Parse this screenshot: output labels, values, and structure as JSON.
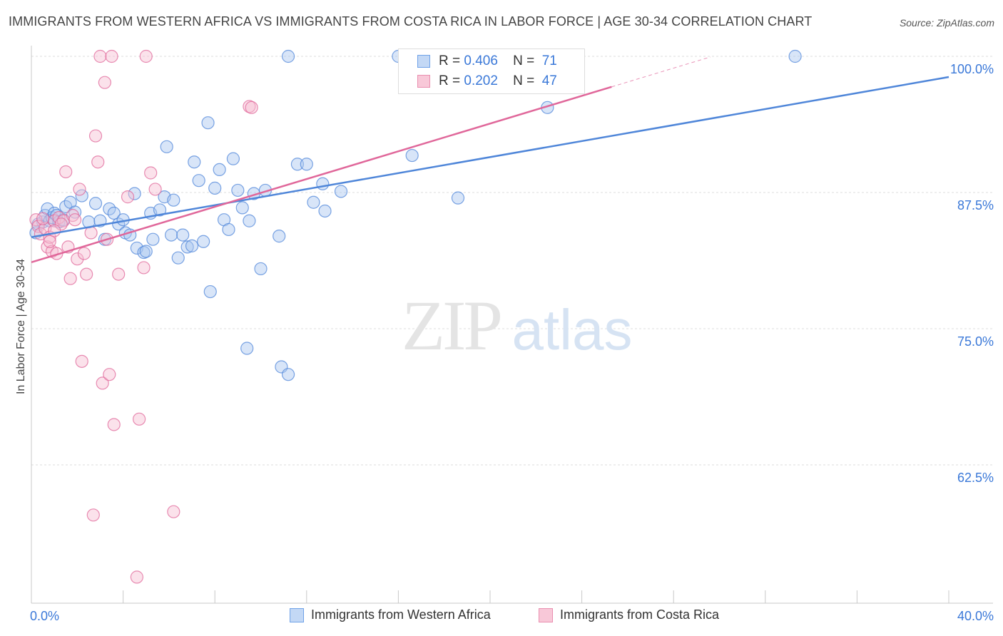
{
  "title": "IMMIGRANTS FROM WESTERN AFRICA VS IMMIGRANTS FROM COSTA RICA IN LABOR FORCE | AGE 30-34 CORRELATION CHART",
  "source": "Source: ZipAtlas.com",
  "watermark": {
    "zip": "ZIP",
    "atlas": "atlas"
  },
  "legend": {
    "rows": [
      {
        "r_label": "R =",
        "r_value": "0.406",
        "n_label": "N =",
        "n_value": "71",
        "color": "#6fa2e8",
        "fill": "#c3d8f5"
      },
      {
        "r_label": "R =",
        "r_value": "0.202",
        "n_label": "N =",
        "n_value": "47",
        "color": "#ea8fb0",
        "fill": "#f8c8d8"
      }
    ]
  },
  "bottom_legend": {
    "series_a": "Immigrants from Western Africa",
    "series_b": "Immigrants from Costa Rica"
  },
  "chart_data": {
    "type": "scatter",
    "title": "IMMIGRANTS FROM WESTERN AFRICA VS IMMIGRANTS FROM COSTA RICA IN LABOR FORCE | AGE 30-34 CORRELATION CHART",
    "xlabel": "",
    "ylabel": "In Labor Force | Age 30-34",
    "xlim": [
      0,
      40
    ],
    "ylim": [
      50,
      101
    ],
    "x_tick_labels": [
      {
        "value": 0,
        "label": "0.0%"
      },
      {
        "value": 40,
        "label": "40.0%"
      }
    ],
    "y_tick_labels": [
      {
        "value": 100,
        "label": "100.0%"
      },
      {
        "value": 87.5,
        "label": "87.5%"
      },
      {
        "value": 75,
        "label": "75.0%"
      },
      {
        "value": 62.5,
        "label": "62.5%"
      }
    ],
    "grid": true,
    "series": [
      {
        "name": "Immigrants from Western Africa",
        "color": "#4f86d9",
        "fill": "#a9c6f0",
        "trend": {
          "x": [
            0,
            40
          ],
          "y": [
            83.4,
            98.1
          ],
          "dashed_x": null
        },
        "points": [
          [
            0.2,
            83.8
          ],
          [
            0.3,
            84.6
          ],
          [
            0.5,
            84.8
          ],
          [
            0.6,
            85.4
          ],
          [
            0.7,
            86.0
          ],
          [
            0.8,
            84.9
          ],
          [
            0.9,
            85.2
          ],
          [
            1.0,
            85.6
          ],
          [
            1.1,
            85.4
          ],
          [
            1.2,
            84.8
          ],
          [
            1.4,
            85.0
          ],
          [
            1.5,
            86.2
          ],
          [
            1.7,
            86.6
          ],
          [
            1.9,
            85.7
          ],
          [
            2.2,
            87.2
          ],
          [
            2.5,
            84.8
          ],
          [
            2.8,
            86.5
          ],
          [
            3.0,
            84.9
          ],
          [
            3.2,
            83.2
          ],
          [
            3.4,
            86.0
          ],
          [
            3.6,
            85.6
          ],
          [
            3.8,
            84.6
          ],
          [
            4.0,
            85.0
          ],
          [
            4.1,
            83.8
          ],
          [
            4.3,
            83.6
          ],
          [
            4.5,
            87.4
          ],
          [
            4.6,
            82.4
          ],
          [
            4.9,
            82.0
          ],
          [
            5.0,
            82.1
          ],
          [
            5.2,
            85.6
          ],
          [
            5.3,
            83.2
          ],
          [
            5.6,
            85.9
          ],
          [
            5.8,
            87.1
          ],
          [
            5.9,
            91.7
          ],
          [
            6.1,
            83.6
          ],
          [
            6.2,
            86.8
          ],
          [
            6.4,
            81.5
          ],
          [
            6.6,
            83.6
          ],
          [
            6.8,
            82.5
          ],
          [
            7.0,
            82.6
          ],
          [
            7.1,
            90.3
          ],
          [
            7.3,
            88.6
          ],
          [
            7.5,
            83.0
          ],
          [
            7.7,
            93.9
          ],
          [
            7.8,
            78.4
          ],
          [
            8.0,
            87.9
          ],
          [
            8.2,
            89.6
          ],
          [
            8.4,
            85.0
          ],
          [
            8.6,
            84.1
          ],
          [
            8.8,
            90.6
          ],
          [
            9.0,
            87.7
          ],
          [
            9.2,
            86.1
          ],
          [
            9.4,
            73.2
          ],
          [
            9.5,
            84.9
          ],
          [
            9.7,
            87.4
          ],
          [
            10.0,
            80.5
          ],
          [
            10.2,
            87.7
          ],
          [
            10.8,
            83.5
          ],
          [
            10.9,
            71.5
          ],
          [
            11.2,
            70.8
          ],
          [
            11.2,
            100.0
          ],
          [
            11.6,
            90.1
          ],
          [
            12.0,
            90.1
          ],
          [
            12.3,
            86.6
          ],
          [
            12.7,
            88.3
          ],
          [
            12.8,
            85.8
          ],
          [
            13.5,
            87.6
          ],
          [
            16.0,
            100.0
          ],
          [
            16.6,
            90.9
          ],
          [
            18.6,
            87.0
          ],
          [
            22.5,
            95.3
          ],
          [
            33.3,
            100.0
          ]
        ]
      },
      {
        "name": "Immigrants from Costa Rica",
        "color": "#e0679a",
        "fill": "#f6bfd2",
        "trend": {
          "x": [
            0,
            25.3
          ],
          "y": [
            81.1,
            97.2
          ],
          "dashed_x": [
            25.3,
            29.6
          ]
        },
        "points": [
          [
            0.2,
            85.0
          ],
          [
            0.3,
            84.4
          ],
          [
            0.4,
            83.7
          ],
          [
            0.6,
            84.2
          ],
          [
            0.7,
            82.5
          ],
          [
            0.8,
            83.4
          ],
          [
            0.9,
            82.1
          ],
          [
            1.0,
            84.9
          ],
          [
            1.1,
            81.9
          ],
          [
            1.2,
            85.2
          ],
          [
            1.4,
            84.9
          ],
          [
            1.5,
            89.4
          ],
          [
            1.6,
            82.5
          ],
          [
            1.7,
            79.6
          ],
          [
            1.8,
            85.4
          ],
          [
            2.0,
            81.4
          ],
          [
            2.1,
            87.8
          ],
          [
            2.2,
            72.0
          ],
          [
            2.3,
            81.9
          ],
          [
            2.4,
            80.0
          ],
          [
            2.6,
            83.8
          ],
          [
            2.8,
            92.7
          ],
          [
            2.9,
            90.3
          ],
          [
            3.0,
            100.0
          ],
          [
            3.1,
            70.0
          ],
          [
            3.2,
            97.6
          ],
          [
            3.3,
            83.2
          ],
          [
            3.4,
            70.8
          ],
          [
            3.5,
            100.0
          ],
          [
            3.6,
            66.2
          ],
          [
            3.8,
            80.0
          ],
          [
            4.2,
            87.1
          ],
          [
            4.7,
            66.7
          ],
          [
            4.9,
            80.6
          ],
          [
            5.0,
            100.0
          ],
          [
            5.2,
            89.3
          ],
          [
            5.4,
            87.8
          ],
          [
            2.7,
            57.9
          ],
          [
            6.2,
            58.2
          ],
          [
            4.6,
            52.2
          ],
          [
            9.5,
            95.4
          ],
          [
            9.6,
            95.3
          ],
          [
            1.3,
            84.6
          ],
          [
            0.5,
            85.1
          ],
          [
            1.9,
            85.0
          ],
          [
            1.0,
            84.0
          ],
          [
            0.8,
            83.0
          ]
        ]
      }
    ]
  }
}
